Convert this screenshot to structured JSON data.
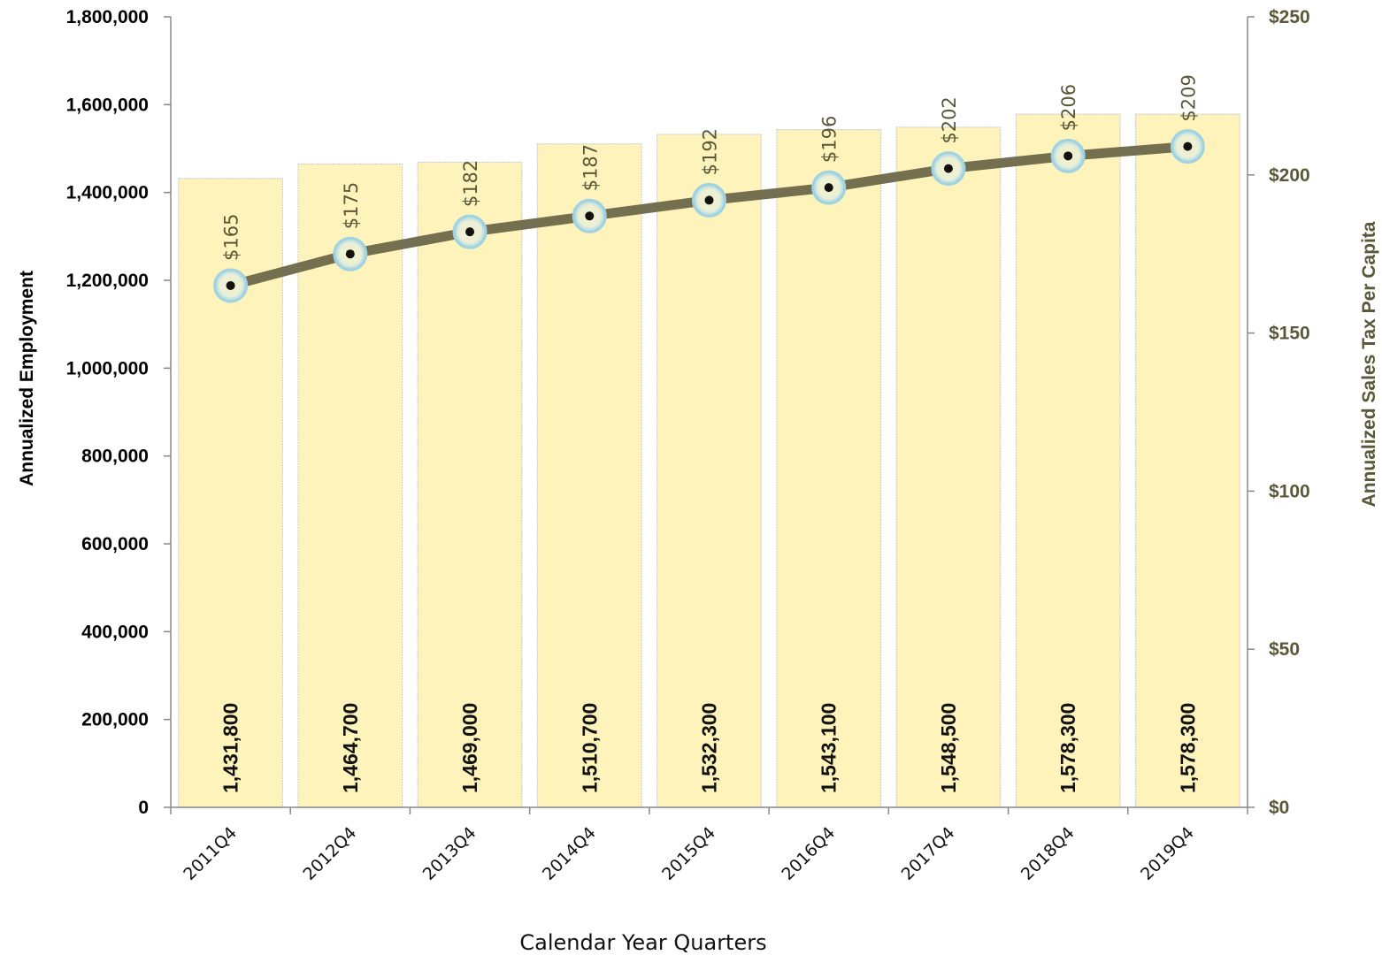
{
  "colors": {
    "bar_fill": "#fdf3bb",
    "bar_stroke": "#cfcfcf",
    "line": "#6b6749",
    "marker_ring": "#9fd3e3",
    "marker_center": "#111111",
    "right_axis_text": "#5a5838",
    "axis_line": "#888888"
  },
  "chart_data": {
    "type": "bar",
    "combo_with": "line",
    "xlabel": "Calendar Year Quarters",
    "ylabel": "Annualized Employment",
    "y2label": "Annualized Sales Tax Per Capita",
    "ylim": [
      0,
      1800000
    ],
    "y2lim": [
      0,
      250
    ],
    "grid": false,
    "categories": [
      "2011Q4",
      "2012Q4",
      "2013Q4",
      "2014Q4",
      "2015Q4",
      "2016Q4",
      "2017Q4",
      "2018Q4",
      "2019Q4"
    ],
    "series": [
      {
        "kind": "bar",
        "axis": "left",
        "values": [
          1431800,
          1464700,
          1469000,
          1510700,
          1532300,
          1543100,
          1548500,
          1578300,
          1578300
        ],
        "labels": [
          "1,431,800",
          "1,464,700",
          "1,469,000",
          "1,510,700",
          "1,532,300",
          "1,543,100",
          "1,548,500",
          "1,578,300",
          "1,578,300"
        ]
      },
      {
        "kind": "line",
        "axis": "right",
        "values": [
          165,
          175,
          182,
          187,
          192,
          196,
          202,
          206,
          209
        ],
        "labels": [
          "$165",
          "$175",
          "$182",
          "$187",
          "$192",
          "$196",
          "$202",
          "$206",
          "$209"
        ]
      }
    ],
    "y_ticks": [
      "0",
      "200,000",
      "400,000",
      "600,000",
      "800,000",
      "1,000,000",
      "1,200,000",
      "1,400,000",
      "1,600,000",
      "1,800,000"
    ],
    "y2_ticks": [
      "$0",
      "$50",
      "$100",
      "$150",
      "$200",
      "$250"
    ]
  }
}
